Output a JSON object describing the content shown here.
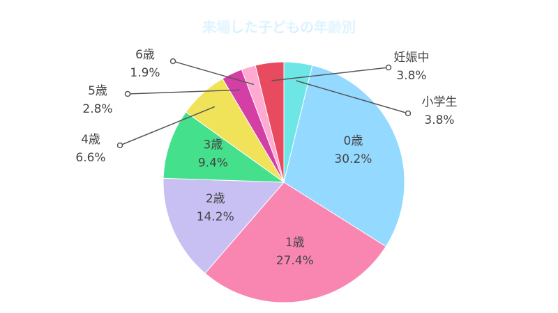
{
  "chart_data": {
    "type": "pie",
    "title": "来場した子どもの年齢別",
    "categories": [
      "小学生",
      "0歳",
      "1歳",
      "2歳",
      "3歳",
      "4歳",
      "5歳",
      "6歳",
      "妊娠中"
    ],
    "values": [
      3.8,
      30.2,
      27.4,
      14.2,
      9.4,
      6.6,
      2.8,
      1.9,
      3.8
    ],
    "value_labels": [
      "3.8%",
      "30.2%",
      "27.4%",
      "14.2%",
      "9.4%",
      "6.6%",
      "2.8%",
      "1.9%",
      "3.8%"
    ],
    "colors": [
      "#6ee6e6",
      "#94d9ff",
      "#f986b1",
      "#c8bff2",
      "#45e08c",
      "#f0e35a",
      "#d43fa6",
      "#ffaad0",
      "#e84a5f"
    ]
  }
}
